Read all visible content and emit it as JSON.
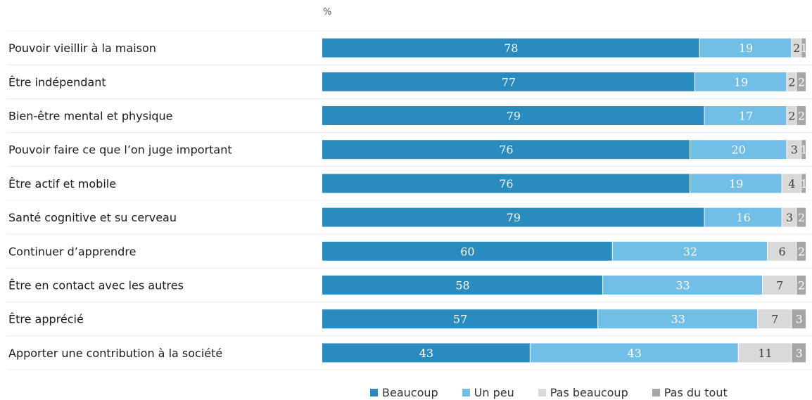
{
  "chart_data": {
    "type": "bar",
    "orientation": "horizontal",
    "stacked": true,
    "unit_label": "%",
    "categories": [
      "Pouvoir vieillir à la maison",
      "Être indépendant",
      "Bien-être mental et physique",
      "Pouvoir faire ce que l’on juge important",
      "Être actif et mobile",
      "Santé cognitive et su cerveau",
      "Continuer d’apprendre",
      "Être en contact avec les autres",
      "Être apprécié",
      "Apporter une contribution à la société"
    ],
    "series": [
      {
        "name": "Beaucoup",
        "color": "#2a8bbf",
        "values": [
          78,
          77,
          79,
          76,
          76,
          79,
          60,
          58,
          57,
          43
        ]
      },
      {
        "name": "Un peu",
        "color": "#71bee6",
        "values": [
          19,
          19,
          17,
          20,
          19,
          16,
          32,
          33,
          33,
          43
        ]
      },
      {
        "name": "Pas beaucoup",
        "color": "#d9d9d9",
        "values": [
          2,
          2,
          2,
          3,
          4,
          3,
          6,
          7,
          7,
          11
        ]
      },
      {
        "name": "Pas du tout",
        "color": "#a6a6a6",
        "values": [
          1,
          2,
          2,
          1,
          1,
          2,
          2,
          2,
          3,
          3
        ]
      }
    ],
    "xlim": [
      0,
      100
    ],
    "legend_position": "bottom"
  }
}
